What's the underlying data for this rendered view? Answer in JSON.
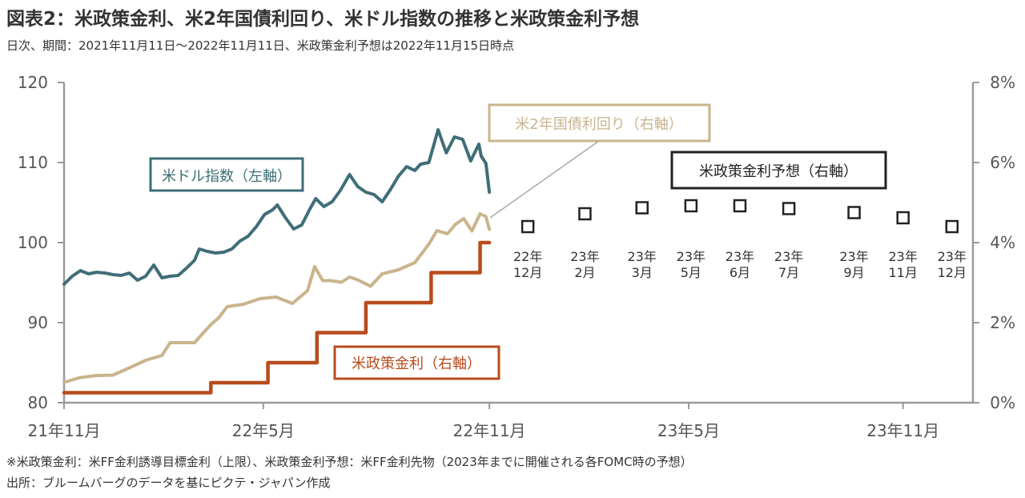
{
  "title": "図表2：米政策金利、米2年国債利回り、米ドル指数の推移と米政策金利予想",
  "subtitle": "日次、期間：2021年11月11日～2022年11月11日、米政策金利予想は2022年11月15日時点",
  "notes": {
    "line1": "※米政策金利：米FF金利誘導目標金利（上限）、米政策金利予想：米FF金利先物（2023年までに開催される各FOMC時の予想）",
    "line2": "出所：ブルームバーグのデータを基にピクテ・ジャパン作成"
  },
  "colors": {
    "usd_index": "#3f6e78",
    "treasury_2y": "#c9b48c",
    "policy_rate": "#b84c1c",
    "forecast": "#222222",
    "axis": "#9a9a9a"
  },
  "chart_data": {
    "type": "line",
    "x_range": [
      "2021-11-11",
      "2023-12-31"
    ],
    "x_ticks": [
      {
        "date": "2021-11-11",
        "label": "21年11月"
      },
      {
        "date": "2022-05-01",
        "label": "22年5月"
      },
      {
        "date": "2022-11-11",
        "label": "22年11月"
      },
      {
        "date": "2023-05-01",
        "label": "23年5月"
      },
      {
        "date": "2023-11-01",
        "label": "23年11月"
      }
    ],
    "y_left": {
      "range": [
        80,
        120
      ],
      "ticks": [
        80,
        90,
        100,
        110,
        120
      ]
    },
    "y_right": {
      "range": [
        0,
        8
      ],
      "ticks": [
        0,
        2,
        4,
        6,
        8
      ],
      "tick_labels": [
        "0%",
        "2%",
        "4%",
        "6%",
        "8%"
      ]
    },
    "series": [
      {
        "name": "米ドル指数（左軸）",
        "axis": "left",
        "points": [
          [
            "2021-11-11",
            94.8
          ],
          [
            "2021-11-18",
            95.8
          ],
          [
            "2021-11-25",
            96.5
          ],
          [
            "2021-12-02",
            96.1
          ],
          [
            "2021-12-09",
            96.3
          ],
          [
            "2021-12-16",
            96.2
          ],
          [
            "2021-12-23",
            96.0
          ],
          [
            "2021-12-30",
            95.9
          ],
          [
            "2022-01-06",
            96.2
          ],
          [
            "2022-01-13",
            95.3
          ],
          [
            "2022-01-20",
            95.8
          ],
          [
            "2022-01-27",
            97.2
          ],
          [
            "2022-02-03",
            95.6
          ],
          [
            "2022-02-10",
            95.8
          ],
          [
            "2022-02-17",
            95.9
          ],
          [
            "2022-02-24",
            96.8
          ],
          [
            "2022-03-03",
            97.8
          ],
          [
            "2022-03-07",
            99.2
          ],
          [
            "2022-03-14",
            98.9
          ],
          [
            "2022-03-21",
            98.7
          ],
          [
            "2022-03-28",
            98.8
          ],
          [
            "2022-04-04",
            99.2
          ],
          [
            "2022-04-11",
            100.2
          ],
          [
            "2022-04-18",
            100.8
          ],
          [
            "2022-04-25",
            102.0
          ],
          [
            "2022-05-02",
            103.5
          ],
          [
            "2022-05-09",
            104.1
          ],
          [
            "2022-05-13",
            104.7
          ],
          [
            "2022-05-20",
            103.1
          ],
          [
            "2022-05-27",
            101.7
          ],
          [
            "2022-06-03",
            102.2
          ],
          [
            "2022-06-10",
            104.2
          ],
          [
            "2022-06-15",
            105.5
          ],
          [
            "2022-06-22",
            104.5
          ],
          [
            "2022-06-29",
            105.1
          ],
          [
            "2022-07-06",
            106.5
          ],
          [
            "2022-07-14",
            108.5
          ],
          [
            "2022-07-21",
            107.0
          ],
          [
            "2022-07-28",
            106.3
          ],
          [
            "2022-08-04",
            106.0
          ],
          [
            "2022-08-11",
            105.1
          ],
          [
            "2022-08-18",
            106.6
          ],
          [
            "2022-08-25",
            108.3
          ],
          [
            "2022-09-01",
            109.5
          ],
          [
            "2022-09-08",
            109.0
          ],
          [
            "2022-09-13",
            109.8
          ],
          [
            "2022-09-20",
            110.0
          ],
          [
            "2022-09-28",
            114.1
          ],
          [
            "2022-10-05",
            111.2
          ],
          [
            "2022-10-12",
            113.2
          ],
          [
            "2022-10-19",
            112.9
          ],
          [
            "2022-10-26",
            110.2
          ],
          [
            "2022-11-02",
            112.3
          ],
          [
            "2022-11-04",
            110.8
          ],
          [
            "2022-11-08",
            109.9
          ],
          [
            "2022-11-11",
            106.3
          ]
        ]
      },
      {
        "name": "米2年国債利回り（右軸）",
        "axis": "right",
        "points": [
          [
            "2021-11-11",
            0.51
          ],
          [
            "2021-11-25",
            0.63
          ],
          [
            "2021-12-09",
            0.68
          ],
          [
            "2021-12-23",
            0.69
          ],
          [
            "2022-01-06",
            0.87
          ],
          [
            "2022-01-20",
            1.06
          ],
          [
            "2022-02-03",
            1.18
          ],
          [
            "2022-02-10",
            1.5
          ],
          [
            "2022-02-24",
            1.5
          ],
          [
            "2022-03-03",
            1.5
          ],
          [
            "2022-03-10",
            1.73
          ],
          [
            "2022-03-17",
            1.95
          ],
          [
            "2022-03-24",
            2.13
          ],
          [
            "2022-03-31",
            2.4
          ],
          [
            "2022-04-14",
            2.46
          ],
          [
            "2022-04-28",
            2.6
          ],
          [
            "2022-05-12",
            2.64
          ],
          [
            "2022-05-26",
            2.48
          ],
          [
            "2022-06-08",
            2.8
          ],
          [
            "2022-06-14",
            3.4
          ],
          [
            "2022-06-21",
            3.05
          ],
          [
            "2022-06-28",
            3.05
          ],
          [
            "2022-07-07",
            3.01
          ],
          [
            "2022-07-14",
            3.14
          ],
          [
            "2022-07-21",
            3.07
          ],
          [
            "2022-08-01",
            2.91
          ],
          [
            "2022-08-11",
            3.22
          ],
          [
            "2022-08-25",
            3.32
          ],
          [
            "2022-09-08",
            3.5
          ],
          [
            "2022-09-20",
            3.96
          ],
          [
            "2022-09-27",
            4.3
          ],
          [
            "2022-10-06",
            4.22
          ],
          [
            "2022-10-13",
            4.46
          ],
          [
            "2022-10-20",
            4.6
          ],
          [
            "2022-10-27",
            4.29
          ],
          [
            "2022-11-03",
            4.72
          ],
          [
            "2022-11-08",
            4.65
          ],
          [
            "2022-11-11",
            4.33
          ]
        ]
      },
      {
        "name": "米政策金利（右軸）",
        "axis": "right",
        "step": true,
        "points": [
          [
            "2021-11-11",
            0.25
          ],
          [
            "2022-03-17",
            0.5
          ],
          [
            "2022-05-05",
            1.0
          ],
          [
            "2022-06-16",
            1.75
          ],
          [
            "2022-07-28",
            2.5
          ],
          [
            "2022-09-22",
            3.25
          ],
          [
            "2022-11-03",
            4.0
          ],
          [
            "2022-11-11",
            4.0
          ]
        ]
      },
      {
        "name": "米政策金利予想（右軸）",
        "axis": "right",
        "type": "scatter",
        "points": [
          {
            "date": "2022-12-14",
            "value": 4.4,
            "label": [
              "22年",
              "12月"
            ]
          },
          {
            "date": "2023-02-01",
            "value": 4.72,
            "label": [
              "23年",
              "2月"
            ]
          },
          {
            "date": "2023-03-22",
            "value": 4.87,
            "label": [
              "23年",
              "3月"
            ]
          },
          {
            "date": "2023-05-03",
            "value": 4.92,
            "label": [
              "23年",
              "5月"
            ]
          },
          {
            "date": "2023-06-14",
            "value": 4.92,
            "label": [
              "23年",
              "6月"
            ]
          },
          {
            "date": "2023-07-26",
            "value": 4.85,
            "label": [
              "23年",
              "7月"
            ]
          },
          {
            "date": "2023-09-20",
            "value": 4.75,
            "label": [
              "23年",
              "9月"
            ]
          },
          {
            "date": "2023-11-01",
            "value": 4.62,
            "label": [
              "23年",
              "11月"
            ]
          },
          {
            "date": "2023-12-13",
            "value": 4.4,
            "label": [
              "23年",
              "12月"
            ]
          }
        ]
      }
    ],
    "annotations": {
      "usd_index": "米ドル指数（左軸）",
      "treasury_2y": "米2年国債利回り（右軸）",
      "policy_rate": "米政策金利（右軸）",
      "forecast": "米政策金利予想（右軸）"
    }
  }
}
